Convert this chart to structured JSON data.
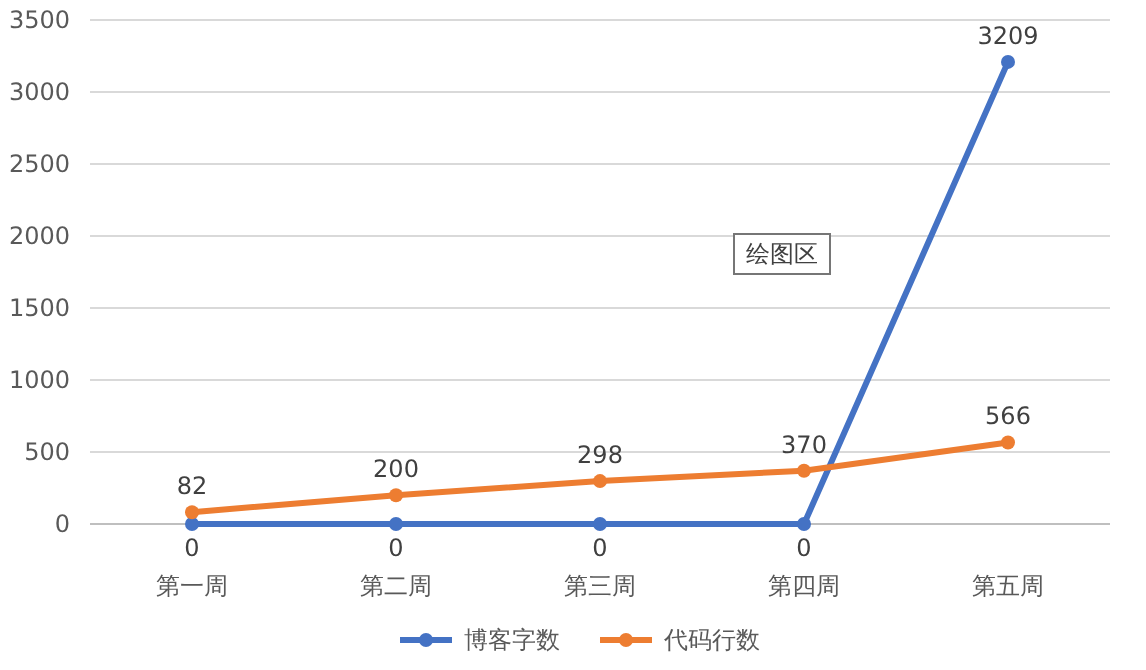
{
  "chart_data": {
    "type": "line",
    "categories": [
      "第一周",
      "第二周",
      "第三周",
      "第四周",
      "第五周"
    ],
    "series": [
      {
        "name": "博客字数",
        "color": "#4472c4",
        "values": [
          0,
          0,
          0,
          0,
          3209
        ]
      },
      {
        "name": "代码行数",
        "color": "#ed7d31",
        "values": [
          82,
          200,
          298,
          370,
          566
        ]
      }
    ],
    "ylim": [
      0,
      3500
    ],
    "yticks": [
      0,
      500,
      1000,
      1500,
      2000,
      2500,
      3000,
      3500
    ],
    "grid": "y",
    "legend": "bottom",
    "marker": "circle",
    "line_style": "solid",
    "data_labels": true,
    "annotations": [
      "绘图区"
    ]
  }
}
